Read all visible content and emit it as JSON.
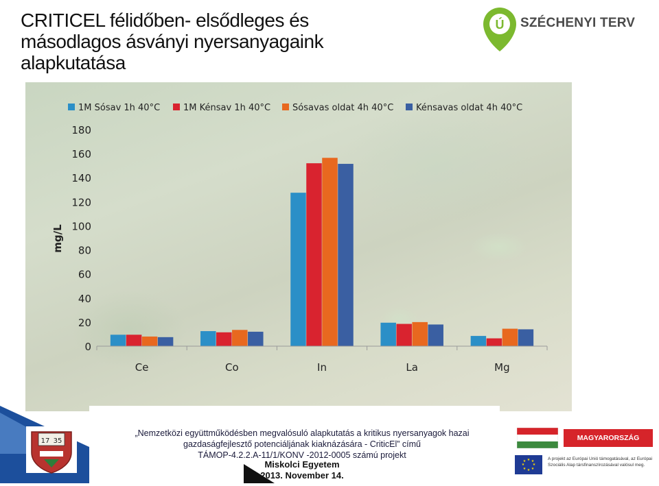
{
  "title": {
    "line1": "CRITICEL félidőben- elsődleges és",
    "line2": "másodlagos ásványi nyersanyagaink",
    "line3": "alapkutatása"
  },
  "logo": {
    "text": "SZÉCHENYI TERV",
    "mark": "Ú"
  },
  "chart_data": {
    "type": "bar",
    "ylabel": "mg/L",
    "ylim": [
      0,
      180
    ],
    "yticks": [
      0,
      20,
      40,
      60,
      80,
      100,
      120,
      140,
      160,
      180
    ],
    "categories": [
      "Ce",
      "Co",
      "In",
      "La",
      "Mg"
    ],
    "legend_position": "top",
    "grid": false,
    "series": [
      {
        "name": "1M Sósav 1h 40°C",
        "color": "#2b8fc7",
        "values": [
          9.5,
          12.5,
          127.5,
          19.5,
          8.5
        ]
      },
      {
        "name": "1M Kénsav 1h 40°C",
        "color": "#d9232f",
        "values": [
          9.5,
          11.5,
          152,
          18.5,
          6.5
        ]
      },
      {
        "name": "Sósavas oldat 4h 40°C",
        "color": "#e8681f",
        "values": [
          8,
          13.5,
          156.5,
          20,
          14.5
        ]
      },
      {
        "name": "Kénsavas oldat 4h 40°C",
        "color": "#3a5fa2",
        "values": [
          7.5,
          12,
          151.5,
          18,
          14
        ]
      }
    ]
  },
  "footer": {
    "line1": "„Nemzetközi együttműködésben megvalósuló alapkutatás a kritikus nyersanyagok hazai",
    "line2": "gazdaságfejlesztő potenciáljának kiaknázására - CriticEl” című",
    "line3": "TÁMOP-4.2.2.A-11/1/KONV -2012-0005 számú projekt",
    "university": "Miskolci Egyetem",
    "date": "2013. November 14.",
    "crest_year_left": "17",
    "crest_year_right": "35"
  },
  "mm_logo": {
    "banner": "MAGYARORSZÁG MEGÚJUL",
    "eu_text": "A projekt az Európai Unió támogatásával, az Európai Szociális Alap társfinanszírozásával valósul meg."
  }
}
